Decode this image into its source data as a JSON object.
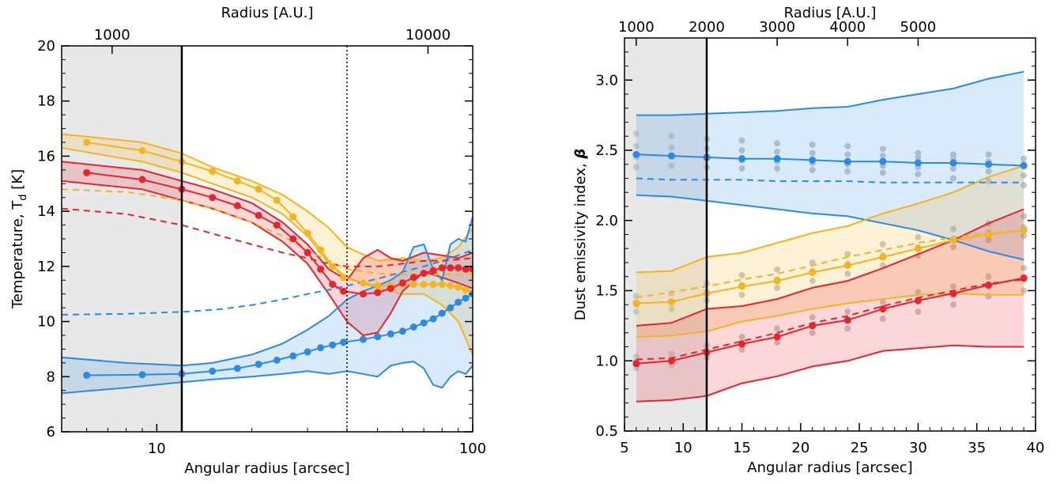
{
  "chart_data": [
    {
      "type": "line",
      "xscale": "log",
      "xlim": [
        5,
        100
      ],
      "ylim": [
        6,
        20
      ],
      "xlabel": "Angular radius [arcsec]",
      "ylabel": "Temperature, T",
      "ylabel_sub": "d",
      "ylabel_unit": " [K]",
      "top_xlabel": "Radius [A.U.]",
      "x_tick_labels": [
        "10",
        "100"
      ],
      "y_tick_labels": [
        "6",
        "8",
        "10",
        "12",
        "14",
        "16",
        "18",
        "20"
      ],
      "top_tick_labels": [
        "1000",
        "10000"
      ],
      "shaded_region_x": [
        5,
        12
      ],
      "vertical_lines": [
        {
          "x": 12,
          "style": "solid"
        },
        {
          "x": 40,
          "style": "dotted"
        }
      ],
      "colors": {
        "red": "#e8242c",
        "yellow": "#f5b41e",
        "blue": "#2b8ae6",
        "shade": "#e8e8e8"
      },
      "series": [
        {
          "color": "yellow",
          "x": [
            6,
            9,
            12,
            15,
            18,
            21,
            24,
            27,
            30,
            33,
            36,
            39
          ],
          "y": [
            16.5,
            16.2,
            15.8,
            15.45,
            15.1,
            14.8,
            14.4,
            13.8,
            13.2,
            12.6,
            12.0,
            11.6
          ],
          "band_x": [
            5,
            9,
            12,
            15,
            20,
            25,
            30,
            35,
            40,
            50,
            60,
            70,
            80,
            90,
            100
          ],
          "band_upper": [
            16.8,
            16.5,
            16.1,
            15.6,
            15.1,
            14.6,
            14.0,
            13.4,
            12.7,
            12.2,
            12.3,
            12.2,
            12.3,
            12.7,
            13.4
          ],
          "band_lower": [
            16.3,
            15.8,
            15.4,
            15.0,
            14.5,
            13.9,
            13.1,
            12.1,
            11.6,
            11.2,
            11.0,
            11.0,
            10.6,
            10.0,
            8.8
          ],
          "dashed_x": [
            5,
            8,
            12,
            16,
            20,
            25,
            30,
            35,
            40,
            50,
            60,
            70,
            80,
            90,
            100
          ],
          "dashed_y": [
            14.8,
            14.7,
            14.4,
            14.0,
            13.6,
            13.1,
            12.6,
            12.2,
            11.9,
            11.75,
            11.7,
            11.7,
            11.7,
            11.7,
            11.7
          ],
          "profile_x": [
            40,
            45,
            50,
            55,
            60,
            65,
            70,
            75,
            80,
            85,
            90,
            95,
            100
          ],
          "profile_y": [
            11.6,
            11.4,
            11.3,
            11.3,
            11.35,
            11.35,
            11.35,
            11.35,
            11.35,
            11.3,
            11.25,
            11.15,
            11.05
          ]
        },
        {
          "color": "red",
          "x": [
            6,
            9,
            12,
            15,
            18,
            21,
            24,
            27,
            30,
            33,
            36,
            39
          ],
          "y": [
            15.4,
            15.15,
            14.8,
            14.5,
            14.2,
            13.85,
            13.5,
            13.0,
            12.5,
            11.9,
            11.35,
            11.1
          ],
          "band_x": [
            5,
            9,
            12,
            15,
            20,
            25,
            30,
            35,
            40,
            45,
            50,
            55,
            60,
            70,
            80,
            90,
            100
          ],
          "band_upper": [
            15.8,
            15.5,
            15.1,
            14.8,
            14.3,
            13.6,
            12.8,
            11.9,
            11.5,
            12.3,
            12.6,
            12.3,
            12.2,
            12.5,
            12.4,
            12.3,
            12.5
          ],
          "band_lower": [
            15.1,
            14.8,
            14.4,
            14.1,
            13.6,
            12.9,
            12.1,
            11.0,
            10.0,
            9.5,
            9.6,
            10.3,
            11.1,
            11.8,
            11.6,
            11.4,
            11.2
          ],
          "dashed_x": [
            5,
            8,
            12,
            16,
            20,
            25,
            30,
            35,
            40,
            50,
            60,
            70,
            80,
            90,
            100
          ],
          "dashed_y": [
            14.1,
            13.9,
            13.5,
            13.1,
            12.8,
            12.5,
            12.3,
            12.1,
            12.0,
            12.0,
            12.1,
            12.2,
            12.2,
            12.25,
            12.3
          ],
          "profile_x": [
            40,
            45,
            50,
            55,
            60,
            65,
            70,
            75,
            80,
            85,
            90,
            95,
            100
          ],
          "profile_y": [
            11.1,
            11.0,
            11.05,
            11.2,
            11.4,
            11.6,
            11.75,
            11.85,
            11.95,
            11.95,
            11.95,
            11.9,
            11.9
          ]
        },
        {
          "color": "blue",
          "x": [
            6,
            9,
            12,
            15,
            18,
            21,
            24,
            27,
            30,
            33,
            36,
            39
          ],
          "y": [
            8.05,
            8.07,
            8.1,
            8.2,
            8.3,
            8.45,
            8.6,
            8.75,
            8.9,
            9.05,
            9.15,
            9.25
          ],
          "band_x": [
            5,
            8,
            12,
            15,
            20,
            25,
            30,
            35,
            40,
            45,
            50,
            55,
            60,
            65,
            70,
            75,
            80,
            85,
            90,
            95,
            100
          ],
          "band_upper": [
            8.7,
            8.5,
            8.4,
            8.5,
            8.8,
            9.2,
            9.7,
            10.2,
            10.8,
            11.1,
            11.3,
            11.5,
            11.8,
            12.7,
            12.8,
            11.9,
            11.5,
            12.8,
            13.0,
            12.9,
            13.8
          ],
          "band_lower": [
            7.4,
            7.6,
            7.8,
            7.9,
            8.0,
            8.1,
            8.2,
            8.1,
            8.2,
            8.1,
            8.0,
            8.4,
            8.5,
            8.55,
            8.3,
            7.7,
            7.6,
            8.0,
            8.2,
            8.1,
            8.4
          ],
          "dashed_x": [
            5,
            8,
            12,
            16,
            20,
            25,
            30,
            35,
            40,
            50,
            60,
            70,
            80,
            90,
            100
          ],
          "dashed_y": [
            10.25,
            10.28,
            10.35,
            10.45,
            10.6,
            10.8,
            11.0,
            11.15,
            11.3,
            11.55,
            11.8,
            12.0,
            12.2,
            12.4,
            12.6
          ],
          "profile_x": [
            40,
            45,
            50,
            55,
            60,
            65,
            70,
            75,
            80,
            85,
            90,
            95,
            100
          ],
          "profile_y": [
            9.25,
            9.35,
            9.45,
            9.55,
            9.65,
            9.8,
            9.95,
            10.1,
            10.3,
            10.5,
            10.7,
            10.85,
            11.0
          ]
        }
      ]
    },
    {
      "type": "line",
      "xscale": "linear",
      "xlim": [
        5,
        40
      ],
      "ylim": [
        0.5,
        3.3
      ],
      "xlabel": "Angular radius [arcsec]",
      "ylabel": "Dust emissivity index, ",
      "ylabel_symbol": "β",
      "top_xlabel": "Radius [A.U.]",
      "x_tick_labels": [
        "5",
        "10",
        "15",
        "20",
        "25",
        "30",
        "35",
        "40"
      ],
      "y_tick_labels": [
        "0.5",
        "1.0",
        "1.5",
        "2.0",
        "2.5",
        "3.0"
      ],
      "top_tick_labels": [
        "1000",
        "2000",
        "3000",
        "4000",
        "5000"
      ],
      "shaded_region_x": [
        5,
        12
      ],
      "vertical_lines": [
        {
          "x": 12,
          "style": "solid"
        }
      ],
      "colors": {
        "red": "#e8242c",
        "yellow": "#f5b41e",
        "blue": "#2b8ae6",
        "shade": "#e8e8e8",
        "grey_points": "#c8c8c8"
      },
      "series": [
        {
          "color": "blue",
          "x": [
            6,
            9,
            12,
            15,
            18,
            21,
            24,
            27,
            30,
            33,
            36,
            39
          ],
          "y": [
            2.47,
            2.46,
            2.45,
            2.44,
            2.44,
            2.43,
            2.42,
            2.42,
            2.41,
            2.41,
            2.4,
            2.39
          ],
          "band_upper": [
            2.75,
            2.75,
            2.76,
            2.77,
            2.78,
            2.8,
            2.81,
            2.86,
            2.9,
            2.94,
            3.01,
            3.06
          ],
          "band_lower": [
            2.18,
            2.17,
            2.14,
            2.11,
            2.08,
            2.05,
            2.03,
            1.98,
            1.93,
            1.86,
            1.78,
            1.72
          ],
          "dashed_y": [
            2.3,
            2.29,
            2.29,
            2.29,
            2.28,
            2.28,
            2.28,
            2.27,
            2.27,
            2.27,
            2.27,
            2.27
          ],
          "scatter": [
            [
              2.38,
              2.45,
              2.53,
              2.62
            ],
            [
              2.39,
              2.46,
              2.52,
              2.6
            ],
            [
              2.38,
              2.44,
              2.51,
              2.58
            ],
            [
              2.37,
              2.43,
              2.5,
              2.57
            ],
            [
              2.37,
              2.42,
              2.49,
              2.55
            ],
            [
              2.36,
              2.41,
              2.48,
              2.54
            ],
            [
              2.35,
              2.4,
              2.47,
              2.53
            ],
            [
              2.34,
              2.39,
              2.46,
              2.51
            ],
            [
              2.33,
              2.38,
              2.45,
              2.48
            ],
            [
              2.3,
              2.37,
              2.44,
              2.47
            ],
            [
              2.28,
              2.35,
              2.42,
              2.47
            ],
            [
              2.25,
              2.32,
              2.4,
              2.44
            ]
          ]
        },
        {
          "color": "yellow",
          "x": [
            6,
            9,
            12,
            15,
            18,
            21,
            24,
            27,
            30,
            33,
            36,
            39
          ],
          "y": [
            1.41,
            1.42,
            1.48,
            1.53,
            1.57,
            1.63,
            1.68,
            1.74,
            1.8,
            1.86,
            1.9,
            1.93
          ],
          "band_upper": [
            1.63,
            1.64,
            1.74,
            1.77,
            1.84,
            1.91,
            1.96,
            2.05,
            2.12,
            2.2,
            2.31,
            2.39
          ],
          "band_lower": [
            1.17,
            1.18,
            1.21,
            1.28,
            1.32,
            1.37,
            1.41,
            1.44,
            1.47,
            1.48,
            1.47,
            1.47
          ],
          "dashed_y": [
            1.45,
            1.49,
            1.53,
            1.58,
            1.62,
            1.68,
            1.74,
            1.79,
            1.84,
            1.88,
            1.91,
            1.93
          ],
          "scatter": [
            [
              1.35,
              1.4,
              1.46
            ],
            [
              1.37,
              1.42,
              1.48
            ],
            [
              1.43,
              1.49,
              1.55
            ],
            [
              1.47,
              1.54,
              1.61
            ],
            [
              1.52,
              1.58,
              1.65
            ],
            [
              1.57,
              1.64,
              1.7
            ],
            [
              1.62,
              1.69,
              1.76
            ],
            [
              1.68,
              1.75,
              1.83
            ],
            [
              1.75,
              1.81,
              1.88
            ],
            [
              1.81,
              1.87,
              1.94
            ],
            [
              1.86,
              1.91,
              1.98
            ],
            [
              1.89,
              1.95,
              2.03
            ]
          ]
        },
        {
          "color": "red",
          "x": [
            6,
            9,
            12,
            15,
            18,
            21,
            24,
            27,
            30,
            33,
            36,
            39
          ],
          "y": [
            0.98,
            1.0,
            1.06,
            1.12,
            1.17,
            1.25,
            1.29,
            1.37,
            1.43,
            1.48,
            1.54,
            1.59
          ],
          "band_upper": [
            1.25,
            1.27,
            1.37,
            1.39,
            1.44,
            1.52,
            1.57,
            1.66,
            1.76,
            1.86,
            1.98,
            2.08
          ],
          "band_lower": [
            0.71,
            0.72,
            0.75,
            0.84,
            0.89,
            0.96,
            1.0,
            1.07,
            1.09,
            1.11,
            1.1,
            1.1
          ],
          "dashed_y": [
            1.01,
            1.02,
            1.08,
            1.14,
            1.2,
            1.27,
            1.32,
            1.39,
            1.45,
            1.5,
            1.55,
            1.58
          ],
          "scatter": [
            [
              0.95,
              1.0,
              1.03
            ],
            [
              0.97,
              1.01,
              1.05
            ],
            [
              1.02,
              1.07,
              1.11
            ],
            [
              1.08,
              1.13,
              1.17
            ],
            [
              1.13,
              1.18,
              1.23
            ],
            [
              1.2,
              1.25,
              1.31
            ],
            [
              1.23,
              1.29,
              1.35
            ],
            [
              1.3,
              1.37,
              1.42
            ],
            [
              1.35,
              1.42,
              1.49
            ],
            [
              1.4,
              1.47,
              1.53
            ],
            [
              1.46,
              1.53,
              1.6
            ],
            [
              1.5,
              1.58,
              1.66
            ]
          ]
        }
      ]
    }
  ]
}
